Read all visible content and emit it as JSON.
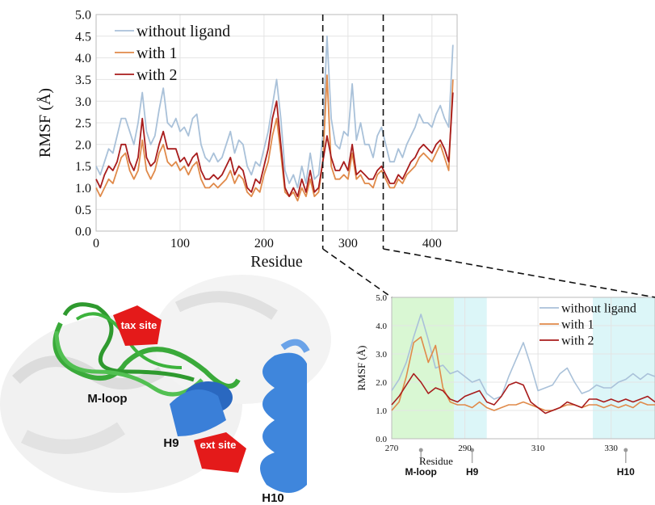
{
  "chart_data": [
    {
      "type": "line",
      "ylabel": "RMSF (Å)",
      "xlabel": "Residue",
      "x": [
        0,
        5,
        10,
        15,
        20,
        25,
        30,
        35,
        40,
        45,
        50,
        55,
        60,
        65,
        70,
        75,
        80,
        85,
        90,
        95,
        100,
        105,
        110,
        115,
        120,
        125,
        130,
        135,
        140,
        145,
        150,
        155,
        160,
        165,
        170,
        175,
        180,
        185,
        190,
        195,
        200,
        205,
        210,
        215,
        220,
        225,
        230,
        235,
        240,
        245,
        250,
        255,
        260,
        265,
        270,
        275,
        280,
        285,
        290,
        295,
        300,
        305,
        310,
        315,
        320,
        325,
        330,
        335,
        340,
        345,
        350,
        355,
        360,
        365,
        370,
        375,
        380,
        385,
        390,
        395,
        400,
        405,
        410,
        415,
        420,
        425
      ],
      "series": [
        {
          "name": "without ligand",
          "color": "#a9c1d9",
          "values": [
            1.5,
            1.3,
            1.6,
            1.9,
            1.8,
            2.2,
            2.6,
            2.6,
            2.3,
            2.0,
            2.5,
            3.2,
            2.3,
            2.0,
            2.2,
            2.8,
            3.3,
            2.5,
            2.4,
            2.6,
            2.3,
            2.4,
            2.2,
            2.6,
            2.7,
            2.0,
            1.7,
            1.6,
            1.8,
            1.6,
            1.7,
            2.0,
            2.3,
            1.8,
            2.1,
            2.0,
            1.5,
            1.3,
            1.6,
            1.5,
            1.9,
            2.3,
            2.9,
            3.5,
            2.6,
            1.4,
            1.1,
            1.3,
            1.0,
            1.5,
            1.1,
            1.8,
            1.2,
            1.3,
            2.2,
            4.5,
            2.6,
            2.0,
            1.9,
            2.3,
            2.2,
            3.4,
            2.1,
            2.5,
            2.0,
            2.0,
            1.7,
            2.2,
            2.4,
            2.0,
            1.6,
            1.6,
            1.9,
            1.7,
            2.0,
            2.2,
            2.4,
            2.7,
            2.5,
            2.5,
            2.4,
            2.7,
            2.9,
            2.6,
            2.4,
            4.3
          ]
        },
        {
          "name": "with 1",
          "color": "#e08a4a",
          "values": [
            1.0,
            0.8,
            1.0,
            1.2,
            1.1,
            1.4,
            1.7,
            1.8,
            1.4,
            1.2,
            1.4,
            2.1,
            1.4,
            1.2,
            1.4,
            1.8,
            2.0,
            1.6,
            1.5,
            1.6,
            1.4,
            1.5,
            1.3,
            1.5,
            1.6,
            1.2,
            1.0,
            1.0,
            1.1,
            1.0,
            1.1,
            1.2,
            1.4,
            1.1,
            1.3,
            1.2,
            0.9,
            0.8,
            1.0,
            0.9,
            1.3,
            1.6,
            2.2,
            2.6,
            1.8,
            0.9,
            0.8,
            0.9,
            0.7,
            1.0,
            0.8,
            1.2,
            0.8,
            0.9,
            1.6,
            3.6,
            1.5,
            1.2,
            1.2,
            1.3,
            1.2,
            1.8,
            1.2,
            1.3,
            1.1,
            1.1,
            1.0,
            1.3,
            1.4,
            1.2,
            1.0,
            1.0,
            1.2,
            1.1,
            1.3,
            1.4,
            1.5,
            1.7,
            1.8,
            1.7,
            1.6,
            1.8,
            2.0,
            1.7,
            1.4,
            3.5
          ]
        },
        {
          "name": "with 2",
          "color": "#a81c1c",
          "values": [
            1.2,
            1.0,
            1.3,
            1.5,
            1.4,
            1.6,
            2.0,
            2.0,
            1.6,
            1.4,
            1.7,
            2.6,
            1.7,
            1.5,
            1.6,
            2.0,
            2.3,
            1.9,
            1.9,
            1.9,
            1.6,
            1.7,
            1.5,
            1.7,
            1.8,
            1.4,
            1.2,
            1.2,
            1.3,
            1.2,
            1.3,
            1.5,
            1.7,
            1.3,
            1.5,
            1.4,
            1.0,
            0.9,
            1.2,
            1.1,
            1.5,
            1.9,
            2.6,
            3.0,
            2.0,
            1.0,
            0.8,
            1.0,
            0.8,
            1.2,
            0.9,
            1.4,
            0.9,
            1.0,
            1.6,
            2.2,
            1.7,
            1.4,
            1.4,
            1.6,
            1.4,
            2.0,
            1.3,
            1.4,
            1.3,
            1.2,
            1.2,
            1.4,
            1.5,
            1.3,
            1.1,
            1.1,
            1.3,
            1.2,
            1.4,
            1.6,
            1.7,
            1.9,
            2.0,
            1.9,
            1.8,
            2.0,
            2.1,
            1.9,
            1.6,
            3.2
          ]
        }
      ],
      "xlim": [
        0,
        430
      ],
      "xticks": [
        0,
        100,
        200,
        300,
        400
      ],
      "ylim": [
        0,
        5
      ],
      "yticks": [
        {
          "value": 0,
          "label": "0.0"
        },
        {
          "value": 0.5,
          "label": "0.5"
        },
        {
          "value": 1,
          "label": "1.0"
        },
        {
          "value": 1.5,
          "label": "1.5"
        },
        {
          "value": 2,
          "label": "2.0"
        },
        {
          "value": 2.5,
          "label": "2.5"
        },
        {
          "value": 3,
          "label": "3.0"
        },
        {
          "value": 3.5,
          "label": "3.5"
        },
        {
          "value": 4,
          "label": "4.0"
        },
        {
          "value": 4.5,
          "label": "4.5"
        },
        {
          "value": 5,
          "label": "5.0"
        }
      ],
      "grid": true,
      "legend": "top-left"
    },
    {
      "type": "line",
      "ylabel": "RMSF (Å)",
      "xlabel": "Residue",
      "x": [
        270,
        272,
        274,
        276,
        278,
        280,
        282,
        284,
        286,
        288,
        290,
        292,
        294,
        296,
        298,
        300,
        302,
        304,
        306,
        308,
        310,
        312,
        314,
        316,
        318,
        320,
        322,
        324,
        326,
        328,
        330,
        332,
        334,
        336,
        338,
        340,
        342
      ],
      "series": [
        {
          "name": "without ligand",
          "color": "#a9c1d9",
          "values": [
            1.7,
            2.1,
            2.7,
            3.6,
            4.4,
            3.5,
            2.5,
            2.6,
            2.3,
            2.4,
            2.2,
            2.0,
            2.1,
            1.6,
            1.4,
            1.5,
            2.2,
            2.8,
            3.4,
            2.6,
            1.7,
            1.8,
            1.9,
            2.3,
            2.5,
            2.0,
            1.6,
            1.7,
            1.9,
            1.8,
            1.8,
            2.0,
            2.1,
            2.3,
            2.1,
            2.3,
            2.2
          ]
        },
        {
          "name": "with 1",
          "color": "#e08a4a",
          "values": [
            1.0,
            1.3,
            2.2,
            3.4,
            3.6,
            2.7,
            3.3,
            1.8,
            1.3,
            1.2,
            1.2,
            1.1,
            1.3,
            1.1,
            1.0,
            1.1,
            1.2,
            1.2,
            1.3,
            1.2,
            1.1,
            1.0,
            1.0,
            1.1,
            1.2,
            1.2,
            1.1,
            1.2,
            1.2,
            1.1,
            1.2,
            1.1,
            1.2,
            1.1,
            1.3,
            1.2,
            1.2
          ]
        },
        {
          "name": "with 2",
          "color": "#a81c1c",
          "values": [
            1.2,
            1.5,
            1.9,
            2.3,
            2.0,
            1.6,
            1.8,
            1.7,
            1.4,
            1.3,
            1.5,
            1.6,
            1.7,
            1.3,
            1.2,
            1.5,
            1.9,
            2.0,
            1.9,
            1.3,
            1.1,
            0.9,
            1.0,
            1.1,
            1.3,
            1.2,
            1.1,
            1.4,
            1.4,
            1.3,
            1.4,
            1.3,
            1.4,
            1.3,
            1.4,
            1.5,
            1.3
          ]
        }
      ],
      "xlim": [
        270,
        342
      ],
      "xticks": [
        270,
        290,
        310,
        330
      ],
      "ylim": [
        0,
        5
      ],
      "yticks": [
        {
          "value": 0,
          "label": "0.0"
        },
        {
          "value": 1,
          "label": "1.0"
        },
        {
          "value": 2,
          "label": "2.0"
        },
        {
          "value": 3,
          "label": "3.0"
        },
        {
          "value": 4,
          "label": "4.0"
        },
        {
          "value": 5,
          "label": "5.0"
        }
      ],
      "grid": true,
      "legend": "top-right",
      "regions": [
        {
          "from": 270,
          "to": 287,
          "color": "#d9f7d3",
          "label": "M-loop",
          "at": 278
        },
        {
          "from": 287,
          "to": 296,
          "color": "#dcf6f8",
          "label": "H9",
          "at": 292
        },
        {
          "from": 325,
          "to": 342,
          "color": "#dcf6f8",
          "label": "H10",
          "at": 334
        }
      ]
    }
  ],
  "image": {
    "labels": [
      "tax site",
      "M-loop",
      "H9",
      "ext site",
      "H10"
    ]
  }
}
